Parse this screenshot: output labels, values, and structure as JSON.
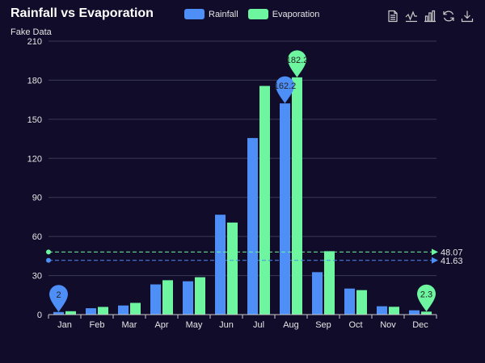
{
  "chart_data": {
    "type": "bar",
    "title": "Rainfall vs Evaporation",
    "subtitle": "Fake Data",
    "categories": [
      "Jan",
      "Feb",
      "Mar",
      "Apr",
      "May",
      "Jun",
      "Jul",
      "Aug",
      "Sep",
      "Oct",
      "Nov",
      "Dec"
    ],
    "series": [
      {
        "name": "Rainfall",
        "color": "#4e8ef7",
        "values": [
          2.0,
          4.9,
          7.0,
          23.2,
          25.6,
          76.7,
          135.6,
          162.2,
          32.6,
          20.0,
          6.4,
          3.3
        ],
        "markPoints": [
          {
            "type": "max",
            "category": "Aug",
            "value": 162.2,
            "label": "162.2"
          },
          {
            "type": "min",
            "category": "Jan",
            "value": 2.0,
            "label": "2"
          }
        ],
        "markLine": {
          "type": "average",
          "value": 41.63,
          "label": "41.63"
        }
      },
      {
        "name": "Evaporation",
        "color": "#6ef5a0",
        "values": [
          2.6,
          5.9,
          9.0,
          26.4,
          28.7,
          70.7,
          175.6,
          182.2,
          48.7,
          18.8,
          6.0,
          2.3
        ],
        "markPoints": [
          {
            "type": "max",
            "category": "Aug",
            "value": 182.2,
            "label": "182.2"
          },
          {
            "type": "min",
            "category": "Dec",
            "value": 2.3,
            "label": "2.3"
          }
        ],
        "markLine": {
          "type": "average",
          "value": 48.07,
          "label": "48.07"
        }
      }
    ],
    "ylim": [
      0,
      210
    ],
    "yticks": [
      0,
      30,
      60,
      90,
      120,
      150,
      180,
      210
    ],
    "grid": true,
    "legend_position": "top-center"
  },
  "toolbox": {
    "items": [
      {
        "name": "data-view-icon"
      },
      {
        "name": "line-chart-icon"
      },
      {
        "name": "bar-chart-icon"
      },
      {
        "name": "restore-icon"
      },
      {
        "name": "save-image-icon"
      }
    ]
  },
  "colors": {
    "background": "#100c2a",
    "grid": "#3a3a55",
    "axis": "#cccccc",
    "text": "#e6e6e6"
  }
}
